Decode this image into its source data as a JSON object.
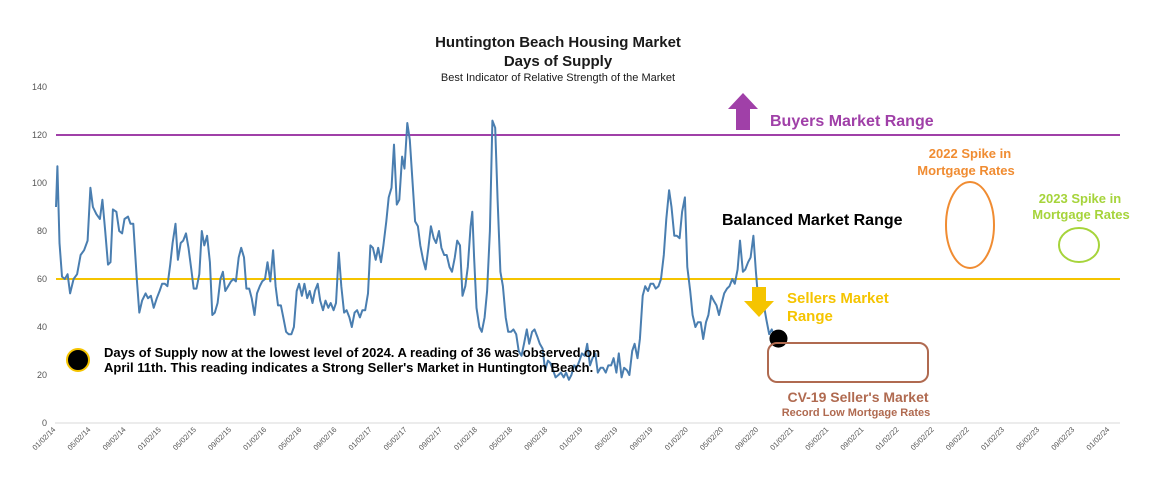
{
  "chart_data": {
    "type": "line",
    "title": "Huntington Beach Housing Market",
    "subtitle": "Days of Supply",
    "caption": "Best Indicator of Relative Strength of the Market",
    "ylim": [
      0,
      140
    ],
    "yticks": [
      0,
      20,
      40,
      60,
      80,
      100,
      120,
      140
    ],
    "x_tick_labels": [
      "01/02/14",
      "05/02/14",
      "09/02/14",
      "01/02/15",
      "05/02/15",
      "09/02/15",
      "01/02/16",
      "05/02/16",
      "09/02/16",
      "01/02/17",
      "05/02/17",
      "09/02/17",
      "01/02/18",
      "05/02/18",
      "09/02/18",
      "01/02/19",
      "05/02/19",
      "09/02/19",
      "01/02/20",
      "05/02/20",
      "09/02/20",
      "01/02/21",
      "05/02/21",
      "09/02/21",
      "01/02/22",
      "05/02/22",
      "09/02/22",
      "01/02/23",
      "05/02/23",
      "09/02/23",
      "01/02/24"
    ],
    "x_start": "2014-01-02",
    "x_end": "2024-04-11",
    "series": [
      {
        "name": "Days of Supply",
        "color": "#4a7eb0",
        "points": [
          [
            0,
            90
          ],
          [
            0.04,
            107
          ],
          [
            0.1,
            75
          ],
          [
            0.17,
            61
          ],
          [
            0.25,
            60
          ],
          [
            0.33,
            62
          ],
          [
            0.4,
            54
          ],
          [
            0.5,
            60
          ],
          [
            0.6,
            62
          ],
          [
            0.7,
            70
          ],
          [
            0.8,
            72
          ],
          [
            0.9,
            76
          ],
          [
            0.98,
            98
          ],
          [
            1.05,
            90
          ],
          [
            1.15,
            87
          ],
          [
            1.25,
            85
          ],
          [
            1.32,
            93
          ],
          [
            1.4,
            80
          ],
          [
            1.48,
            66
          ],
          [
            1.55,
            67
          ],
          [
            1.62,
            89
          ],
          [
            1.72,
            88
          ],
          [
            1.8,
            80
          ],
          [
            1.88,
            79
          ],
          [
            1.95,
            85
          ],
          [
            2.05,
            86
          ],
          [
            2.12,
            83
          ],
          [
            2.2,
            83
          ],
          [
            2.3,
            60
          ],
          [
            2.37,
            46
          ],
          [
            2.45,
            51
          ],
          [
            2.55,
            54
          ],
          [
            2.62,
            52
          ],
          [
            2.7,
            53
          ],
          [
            2.78,
            48
          ],
          [
            2.87,
            52
          ],
          [
            2.95,
            55
          ],
          [
            3.02,
            58
          ],
          [
            3.1,
            58
          ],
          [
            3.17,
            57
          ],
          [
            3.25,
            66
          ],
          [
            3.32,
            75
          ],
          [
            3.4,
            83
          ],
          [
            3.47,
            68
          ],
          [
            3.55,
            75
          ],
          [
            3.62,
            76
          ],
          [
            3.7,
            79
          ],
          [
            3.77,
            73
          ],
          [
            3.85,
            64
          ],
          [
            3.92,
            56
          ],
          [
            4.0,
            56
          ],
          [
            4.08,
            62
          ],
          [
            4.15,
            80
          ],
          [
            4.22,
            74
          ],
          [
            4.3,
            78
          ],
          [
            4.38,
            67
          ],
          [
            4.45,
            45
          ],
          [
            4.52,
            46
          ],
          [
            4.6,
            50
          ],
          [
            4.68,
            60
          ],
          [
            4.75,
            63
          ],
          [
            4.82,
            55
          ],
          [
            4.9,
            57
          ],
          [
            4.98,
            59
          ],
          [
            5.05,
            60
          ],
          [
            5.12,
            59
          ],
          [
            5.2,
            69
          ],
          [
            5.27,
            73
          ],
          [
            5.35,
            69
          ],
          [
            5.42,
            56
          ],
          [
            5.5,
            56
          ],
          [
            5.57,
            52
          ],
          [
            5.65,
            45
          ],
          [
            5.72,
            54
          ],
          [
            5.8,
            57
          ],
          [
            5.87,
            59
          ],
          [
            5.95,
            60
          ],
          [
            6.02,
            67
          ],
          [
            6.1,
            59
          ],
          [
            6.18,
            72
          ],
          [
            6.25,
            57
          ],
          [
            6.32,
            49
          ],
          [
            6.4,
            49
          ],
          [
            6.47,
            44
          ],
          [
            6.55,
            38
          ],
          [
            6.62,
            37
          ],
          [
            6.7,
            37
          ],
          [
            6.77,
            40
          ],
          [
            6.85,
            55
          ],
          [
            6.92,
            58
          ],
          [
            7.0,
            53
          ],
          [
            7.07,
            58
          ],
          [
            7.15,
            52
          ],
          [
            7.22,
            55
          ],
          [
            7.3,
            50
          ],
          [
            7.37,
            55
          ],
          [
            7.45,
            58
          ],
          [
            7.52,
            51
          ],
          [
            7.6,
            47
          ],
          [
            7.67,
            51
          ],
          [
            7.75,
            48
          ],
          [
            7.82,
            50
          ],
          [
            7.9,
            47
          ],
          [
            7.97,
            50
          ],
          [
            8.05,
            71
          ],
          [
            8.12,
            57
          ],
          [
            8.2,
            46
          ],
          [
            8.27,
            47
          ],
          [
            8.35,
            44
          ],
          [
            8.42,
            40
          ],
          [
            8.5,
            46
          ],
          [
            8.57,
            47
          ],
          [
            8.65,
            44
          ],
          [
            8.72,
            47
          ],
          [
            8.8,
            47
          ],
          [
            8.88,
            54
          ],
          [
            8.95,
            74
          ],
          [
            9.02,
            73
          ],
          [
            9.1,
            68
          ],
          [
            9.17,
            73
          ],
          [
            9.25,
            67
          ],
          [
            9.32,
            74
          ],
          [
            9.4,
            84
          ],
          [
            9.47,
            94
          ],
          [
            9.55,
            98
          ],
          [
            9.62,
            116
          ],
          [
            9.7,
            91
          ],
          [
            9.77,
            93
          ],
          [
            9.85,
            111
          ],
          [
            9.92,
            106
          ],
          [
            10.0,
            125
          ],
          [
            10.07,
            118
          ],
          [
            10.15,
            100
          ],
          [
            10.22,
            84
          ],
          [
            10.3,
            82
          ],
          [
            10.37,
            74
          ],
          [
            10.45,
            68
          ],
          [
            10.52,
            64
          ],
          [
            10.6,
            73
          ],
          [
            10.67,
            82
          ],
          [
            10.75,
            77
          ],
          [
            10.82,
            75
          ],
          [
            10.9,
            80
          ],
          [
            10.97,
            73
          ],
          [
            11.05,
            70
          ],
          [
            11.12,
            70
          ],
          [
            11.2,
            65
          ],
          [
            11.27,
            63
          ],
          [
            11.35,
            69
          ],
          [
            11.42,
            76
          ],
          [
            11.5,
            74
          ],
          [
            11.57,
            53
          ],
          [
            11.65,
            57
          ],
          [
            11.72,
            65
          ],
          [
            11.8,
            82
          ],
          [
            11.85,
            88
          ],
          [
            11.9,
            69
          ],
          [
            11.97,
            48
          ],
          [
            12.05,
            40
          ],
          [
            12.12,
            38
          ],
          [
            12.2,
            44
          ],
          [
            12.27,
            55
          ],
          [
            12.35,
            80
          ],
          [
            12.42,
            126
          ],
          [
            12.5,
            123
          ],
          [
            12.57,
            93
          ],
          [
            12.65,
            63
          ],
          [
            12.72,
            57
          ],
          [
            12.8,
            44
          ],
          [
            12.87,
            38
          ],
          [
            12.95,
            38
          ],
          [
            13.02,
            39
          ],
          [
            13.1,
            37
          ],
          [
            13.17,
            30
          ],
          [
            13.25,
            28
          ],
          [
            13.32,
            33
          ],
          [
            13.4,
            39
          ],
          [
            13.47,
            33
          ],
          [
            13.55,
            38
          ],
          [
            13.62,
            39
          ],
          [
            13.7,
            36
          ],
          [
            13.77,
            33
          ],
          [
            13.85,
            31
          ],
          [
            13.92,
            22
          ],
          [
            14.0,
            26
          ],
          [
            14.07,
            25
          ],
          [
            14.15,
            22
          ],
          [
            14.22,
            19
          ],
          [
            14.3,
            20
          ],
          [
            14.37,
            21
          ],
          [
            14.45,
            19
          ],
          [
            14.52,
            21
          ],
          [
            14.6,
            18
          ],
          [
            14.67,
            20
          ],
          [
            14.75,
            24
          ],
          [
            14.82,
            23
          ],
          [
            14.9,
            26
          ],
          [
            14.97,
            29
          ],
          [
            15.05,
            28
          ],
          [
            15.12,
            33
          ],
          [
            15.2,
            24
          ],
          [
            15.27,
            27
          ],
          [
            15.35,
            29
          ],
          [
            15.42,
            21
          ],
          [
            15.5,
            23
          ],
          [
            15.57,
            23
          ],
          [
            15.65,
            21
          ],
          [
            15.72,
            24
          ],
          [
            15.8,
            24
          ],
          [
            15.87,
            27
          ],
          [
            15.95,
            21
          ],
          [
            16.02,
            29
          ],
          [
            16.1,
            19
          ],
          [
            16.17,
            23
          ],
          [
            16.25,
            22
          ],
          [
            16.32,
            20
          ],
          [
            16.4,
            30
          ],
          [
            16.47,
            33
          ],
          [
            16.55,
            27
          ],
          [
            16.62,
            35
          ],
          [
            16.7,
            53
          ],
          [
            16.77,
            57
          ],
          [
            16.85,
            55
          ],
          [
            16.92,
            58
          ],
          [
            17.0,
            58
          ],
          [
            17.07,
            56
          ],
          [
            17.15,
            57
          ],
          [
            17.22,
            60
          ],
          [
            17.3,
            70
          ],
          [
            17.37,
            85
          ],
          [
            17.45,
            97
          ],
          [
            17.52,
            90
          ],
          [
            17.6,
            78
          ],
          [
            17.67,
            78
          ],
          [
            17.75,
            77
          ],
          [
            17.82,
            88
          ],
          [
            17.9,
            94
          ],
          [
            17.97,
            65
          ],
          [
            18.05,
            55
          ],
          [
            18.12,
            45
          ],
          [
            18.2,
            40
          ],
          [
            18.27,
            42
          ],
          [
            18.35,
            42
          ],
          [
            18.42,
            35
          ],
          [
            18.5,
            42
          ],
          [
            18.57,
            45
          ],
          [
            18.65,
            53
          ],
          [
            18.72,
            51
          ],
          [
            18.8,
            49
          ],
          [
            18.87,
            45
          ],
          [
            18.95,
            50
          ],
          [
            19.02,
            54
          ],
          [
            19.1,
            56
          ],
          [
            19.17,
            57
          ],
          [
            19.25,
            60
          ],
          [
            19.32,
            58
          ],
          [
            19.4,
            64
          ],
          [
            19.47,
            76
          ],
          [
            19.55,
            63
          ],
          [
            19.62,
            64
          ],
          [
            19.7,
            67
          ],
          [
            19.77,
            69
          ],
          [
            19.85,
            78
          ],
          [
            19.92,
            63
          ],
          [
            20.0,
            49
          ],
          [
            20.07,
            47
          ],
          [
            20.15,
            49
          ],
          [
            20.22,
            43
          ],
          [
            20.3,
            37
          ],
          [
            20.37,
            39
          ],
          [
            20.45,
            36
          ]
        ]
      }
    ],
    "reference_lines": [
      {
        "name": "Buyers Market Range",
        "value": 120,
        "color": "#a040a8"
      },
      {
        "name": "Sellers Market Range",
        "value": 60,
        "color": "#f5c400"
      }
    ],
    "annotations": {
      "buyers": {
        "text": "Buyers Market Range",
        "color": "#a040a8"
      },
      "balanced": {
        "text": "Balanced Market Range",
        "color": "#000000"
      },
      "sellers_1": {
        "text": "Sellers Market",
        "color": "#f5c400"
      },
      "sellers_2": {
        "text": "Range",
        "color": "#f5c400"
      },
      "spike2022_1": {
        "text": "2022 Spike in",
        "color": "#f08c32"
      },
      "spike2022_2": {
        "text": "Mortgage Rates",
        "color": "#f08c32"
      },
      "spike2023_1": {
        "text": "2023 Spike in",
        "color": "#a6d43b"
      },
      "spike2023_2": {
        "text": "Mortgage Rates",
        "color": "#a6d43b"
      },
      "cv19_1": {
        "text": "CV-19 Seller's Market",
        "color": "#b06a50"
      },
      "cv19_2": {
        "text": "Record Low Mortgage Rates",
        "color": "#b06a50"
      },
      "note_1": "Days of Supply now at the lowest level of 2024.  A reading of 36 was observed on",
      "note_2": "April 11th.  This reading indicates a Strong Seller's Market in Huntington Beach."
    }
  }
}
